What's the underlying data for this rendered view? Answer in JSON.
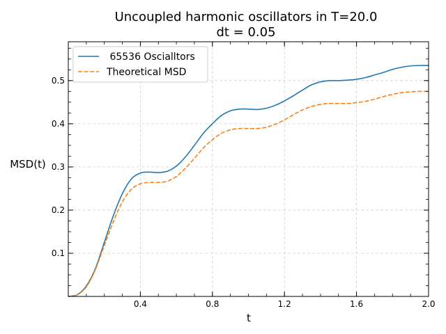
{
  "chart_data": {
    "type": "line",
    "title_line1": "Uncoupled harmonic oscillators in T=20.0",
    "title_line2": "dt = 0.05",
    "xlabel": "t",
    "ylabel": "MSD(t)",
    "xlim": [
      0.0,
      2.0
    ],
    "ylim": [
      0.0,
      0.59
    ],
    "x_ticks": [
      0.4,
      0.8,
      1.2,
      1.6,
      2.0
    ],
    "x_tick_labels": [
      "0.4",
      "0.8",
      "1.2",
      "1.6",
      "2.0"
    ],
    "y_ticks": [
      0.1,
      0.2,
      0.3,
      0.4,
      0.5
    ],
    "y_tick_labels": [
      "0.1",
      "0.2",
      "0.3",
      "0.4",
      "0.5"
    ],
    "grid": true,
    "legend_position": "upper-left",
    "series": [
      {
        "name": " 65536 Oscialltors",
        "color": "#1f77b4",
        "style": "solid",
        "x": [
          0.0,
          0.05,
          0.1,
          0.15,
          0.2,
          0.25,
          0.3,
          0.35,
          0.4,
          0.45,
          0.5,
          0.55,
          0.6,
          0.65,
          0.7,
          0.75,
          0.8,
          0.85,
          0.9,
          0.95,
          1.0,
          1.05,
          1.1,
          1.15,
          1.2,
          1.25,
          1.3,
          1.35,
          1.4,
          1.45,
          1.5,
          1.55,
          1.6,
          1.65,
          1.7,
          1.75,
          1.8,
          1.85,
          1.9,
          1.95,
          2.0
        ],
        "y": [
          0.0,
          0.004,
          0.024,
          0.064,
          0.125,
          0.187,
          0.238,
          0.272,
          0.286,
          0.288,
          0.287,
          0.29,
          0.302,
          0.323,
          0.35,
          0.378,
          0.4,
          0.419,
          0.43,
          0.434,
          0.434,
          0.433,
          0.436,
          0.443,
          0.453,
          0.465,
          0.478,
          0.49,
          0.497,
          0.5,
          0.5,
          0.501,
          0.503,
          0.507,
          0.513,
          0.519,
          0.526,
          0.531,
          0.534,
          0.535,
          0.535
        ]
      },
      {
        "name": "Theoretical MSD",
        "color": "#ff7f0e",
        "style": "dashed",
        "x": [
          0.0,
          0.05,
          0.1,
          0.15,
          0.2,
          0.25,
          0.3,
          0.35,
          0.4,
          0.45,
          0.5,
          0.55,
          0.6,
          0.65,
          0.7,
          0.75,
          0.8,
          0.85,
          0.9,
          0.95,
          1.0,
          1.05,
          1.1,
          1.15,
          1.2,
          1.25,
          1.3,
          1.35,
          1.4,
          1.45,
          1.5,
          1.55,
          1.6,
          1.65,
          1.7,
          1.75,
          1.8,
          1.85,
          1.9,
          1.95,
          2.0
        ],
        "y": [
          0.0,
          0.004,
          0.022,
          0.062,
          0.118,
          0.173,
          0.219,
          0.248,
          0.261,
          0.264,
          0.264,
          0.267,
          0.278,
          0.297,
          0.32,
          0.344,
          0.363,
          0.378,
          0.386,
          0.389,
          0.389,
          0.389,
          0.392,
          0.399,
          0.409,
          0.421,
          0.432,
          0.44,
          0.445,
          0.447,
          0.447,
          0.447,
          0.449,
          0.452,
          0.457,
          0.463,
          0.468,
          0.472,
          0.474,
          0.475,
          0.475
        ]
      }
    ]
  }
}
